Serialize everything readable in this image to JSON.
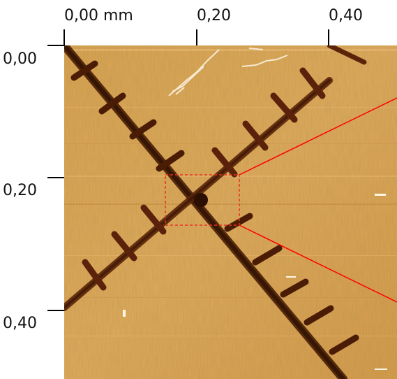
{
  "axes": {
    "x_ticks": [
      "0,00 mm",
      "0,20",
      "0,40"
    ],
    "y_ticks": [
      "0,00",
      "0,20",
      "0,40"
    ]
  },
  "colors": {
    "surface_base": "#d9a254",
    "surface_light": "#e7b872",
    "scratch_dark": "#3a1804",
    "scratch_mid": "#7a3410",
    "zoom_box": "#e8341e",
    "zoom_lines": "#ff0000"
  },
  "icons": {
    "zoom_box": "dashed-rectangle",
    "zoom_lines": "red-leader-lines"
  }
}
